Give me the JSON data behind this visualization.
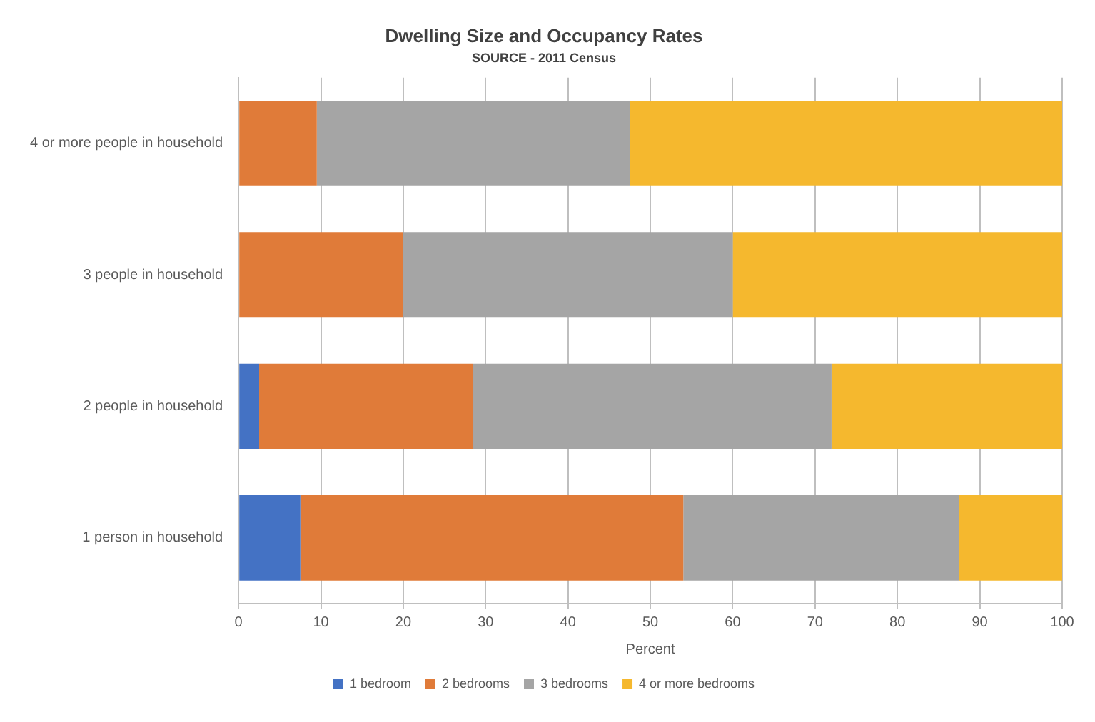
{
  "chart_data": {
    "type": "bar",
    "orientation": "horizontal",
    "stacked": true,
    "title": "Dwelling Size and Occupancy Rates",
    "subtitle": "SOURCE - 2011 Census",
    "xlabel": "Percent",
    "categories": [
      "4 or more people in household",
      "3 people in household",
      "2 people in household",
      "1 person in household"
    ],
    "series": [
      {
        "name": "1 bedroom",
        "color": "#4472c4",
        "values": [
          0,
          0,
          2.5,
          7.5
        ]
      },
      {
        "name": "2 bedrooms",
        "color": "#e07b39",
        "values": [
          9.5,
          20,
          26,
          46.5
        ]
      },
      {
        "name": "3 bedrooms",
        "color": "#a5a5a5",
        "values": [
          38,
          40,
          43.5,
          33.5
        ]
      },
      {
        "name": "4 or more bedrooms",
        "color": "#f5b82e",
        "values": [
          52.5,
          40,
          28,
          12.5
        ]
      }
    ],
    "xlim": [
      0,
      100
    ],
    "xticks": [
      0,
      10,
      20,
      30,
      40,
      50,
      60,
      70,
      80,
      90,
      100
    ],
    "grid": "x",
    "legend": "bottom"
  }
}
